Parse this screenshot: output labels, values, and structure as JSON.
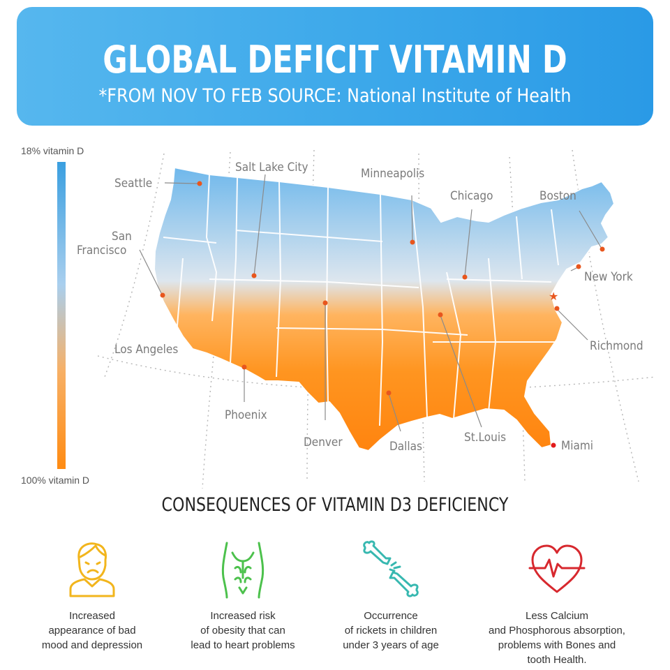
{
  "header": {
    "title": "GLOBAL DEFICIT VITAMIN D",
    "subtitle": "*FROM NOV TO FEB SOURCE: National Institute of Health"
  },
  "legend": {
    "top_label": "18% vitamin D",
    "bottom_label": "100% vitamin D",
    "gradient_colors": [
      "#3a9fe0",
      "#a9cfee",
      "#f7b066",
      "#ff8b12"
    ]
  },
  "map": {
    "cities": [
      {
        "name": "Seattle",
        "line1": "Seattle",
        "line2": ""
      },
      {
        "name": "San Francisco",
        "line1": "San",
        "line2": "Francisco"
      },
      {
        "name": "Los Angeles",
        "line1": "Los Angeles",
        "line2": ""
      },
      {
        "name": "Salt Lake City",
        "line1": "Salt Lake City",
        "line2": ""
      },
      {
        "name": "Phoenix",
        "line1": "Phoenix",
        "line2": ""
      },
      {
        "name": "Denver",
        "line1": "Denver",
        "line2": ""
      },
      {
        "name": "Minneapolis",
        "line1": "Minneapolis",
        "line2": ""
      },
      {
        "name": "Dallas",
        "line1": "Dallas",
        "line2": ""
      },
      {
        "name": "Chicago",
        "line1": "Chicago",
        "line2": ""
      },
      {
        "name": "St.Louis",
        "line1": "St.Louis",
        "line2": ""
      },
      {
        "name": "Boston",
        "line1": "Boston",
        "line2": ""
      },
      {
        "name": "New York",
        "line1": "New York",
        "line2": ""
      },
      {
        "name": "Richmond",
        "line1": "Richmond",
        "line2": ""
      },
      {
        "name": "Miami",
        "line1": "Miami",
        "line2": ""
      }
    ],
    "colors": {
      "north": "#6fb8ec",
      "middle": "#dde6ee",
      "south": "#ff8d12",
      "dot": "#e8561d"
    }
  },
  "consequences": {
    "title": "CONSEQUENCES OF VITAMIN D3 DEFICIENCY",
    "items": [
      {
        "icon": "sad-person-icon",
        "color": "#f2b51c",
        "lines": [
          "Increased",
          "appearance of bad",
          "mood and depression"
        ]
      },
      {
        "icon": "body-torso-icon",
        "color": "#4cc14c",
        "lines": [
          "Increased risk",
          "of obesity that can",
          "lead to heart problems"
        ]
      },
      {
        "icon": "broken-bone-icon",
        "color": "#37b8b0",
        "lines": [
          "Occurrence",
          "of rickets in children",
          "under 3 years of age"
        ]
      },
      {
        "icon": "heart-pulse-icon",
        "color": "#d7282e",
        "lines": [
          "Less Calcium",
          "and Phosphorous absorption,",
          "problems with Bones and",
          "tooth Health."
        ]
      }
    ]
  }
}
